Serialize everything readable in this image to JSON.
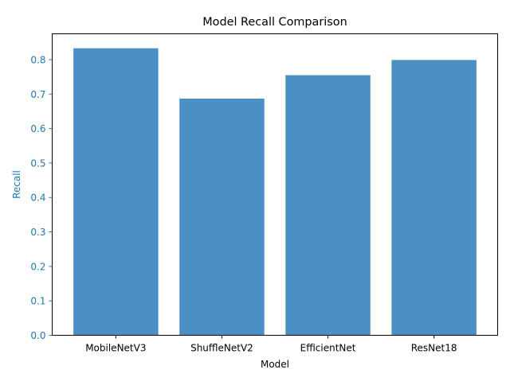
{
  "chart_data": {
    "type": "bar",
    "title": "Model Recall Comparison",
    "xlabel": "Model",
    "ylabel": "Recall",
    "categories": [
      "MobileNetV3",
      "ShuffleNetV2",
      "EfficientNet",
      "ResNet18"
    ],
    "values": [
      0.833,
      0.687,
      0.755,
      0.799
    ],
    "ylim": [
      0,
      0.875
    ],
    "yticks": [
      "0.0",
      "0.1",
      "0.2",
      "0.3",
      "0.4",
      "0.5",
      "0.6",
      "0.7",
      "0.8"
    ],
    "bar_color": "#4a90c4",
    "ylabel_color": "#1f77b4",
    "grid": false,
    "legend": "none"
  }
}
